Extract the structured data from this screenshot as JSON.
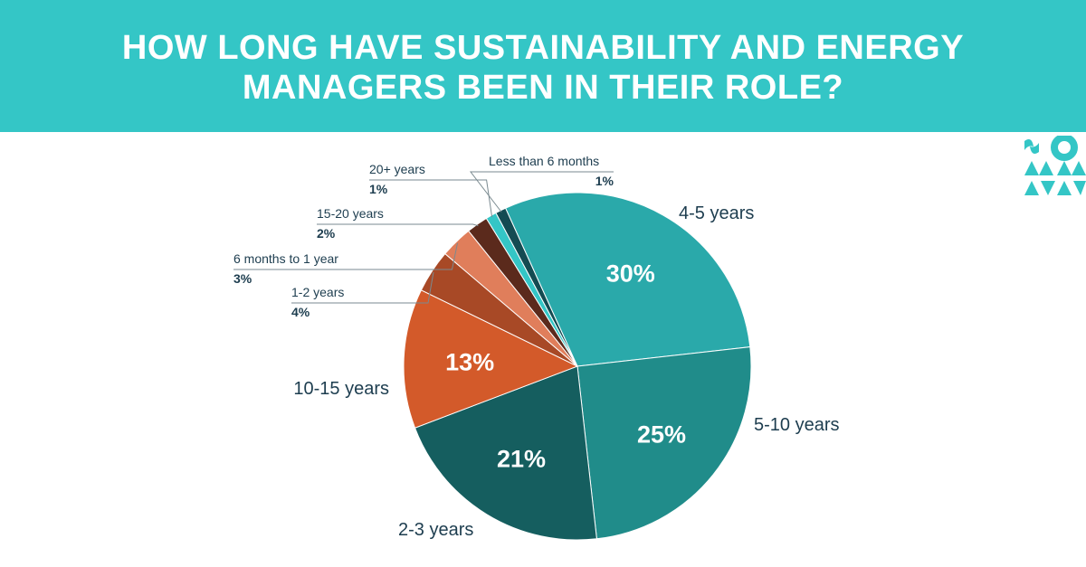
{
  "title": "HOW LONG HAVE SUSTAINABILITY AND ENERGY MANAGERS BEEN IN THEIR ROLE?",
  "colors": {
    "header_bg": "#34c6c6",
    "label_text": "#1d3d4f"
  },
  "chart_data": {
    "type": "pie",
    "title": "HOW LONG HAVE SUSTAINABILITY AND ENERGY MANAGERS BEEN IN THEIR ROLE?",
    "slices": [
      {
        "label": "Less than 6 months",
        "value": 1,
        "display": "1%",
        "color": "#144b52"
      },
      {
        "label": "4-5 years",
        "value": 30,
        "display": "30%",
        "color": "#2aa9aa"
      },
      {
        "label": "5-10 years",
        "value": 25,
        "display": "25%",
        "color": "#208c8a"
      },
      {
        "label": "2-3 years",
        "value": 21,
        "display": "21%",
        "color": "#155e5f"
      },
      {
        "label": "10-15 years",
        "value": 13,
        "display": "13%",
        "color": "#d35a2a"
      },
      {
        "label": "1-2 years",
        "value": 4,
        "display": "4%",
        "color": "#a84926"
      },
      {
        "label": "6 months to 1 year",
        "value": 3,
        "display": "3%",
        "color": "#e07e5b"
      },
      {
        "label": "15-20 years",
        "value": 2,
        "display": "2%",
        "color": "#5b2a1c"
      },
      {
        "label": "20+ years",
        "value": 1,
        "display": "1%",
        "color": "#34c6c6"
      }
    ]
  }
}
